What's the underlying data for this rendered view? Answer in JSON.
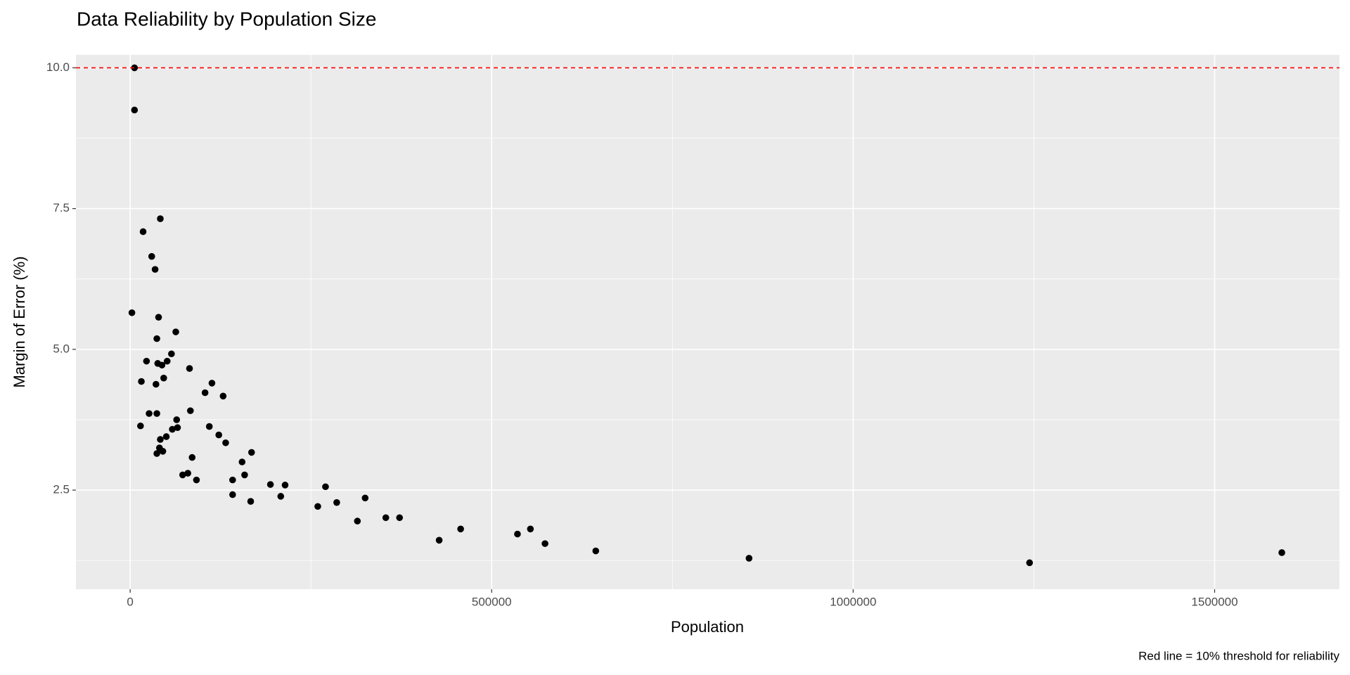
{
  "chart_data": {
    "type": "scatter",
    "title": "Data Reliability by Population Size",
    "x_label": "Population",
    "y_label": "Margin of Error (%)",
    "caption": "Red line = 10% threshold for reliability",
    "color": "#000000",
    "grid": true,
    "hline": {
      "value": 10,
      "color": "#ff0000"
    },
    "xlim": [
      -75000,
      1672619
    ],
    "ylim": [
      0.74,
      10.23
    ],
    "xticks": [
      0,
      500000,
      1000000,
      1500000
    ],
    "yticks": [
      {
        "value": 10,
        "label": "10.0"
      },
      7.5,
      {
        "value": 5,
        "label": "5.0"
      },
      2.5
    ],
    "x": [
      6000,
      6000,
      2400,
      17900,
      41700,
      29800,
      34500,
      39300,
      36900,
      63100,
      22600,
      15500,
      38100,
      44000,
      51200,
      57100,
      35700,
      46400,
      82100,
      26200,
      36900,
      14300,
      83300,
      103600,
      113100,
      128600,
      64300,
      58300,
      65500,
      109500,
      50000,
      41700,
      40500,
      36900,
      45200,
      122600,
      132100,
      85700,
      154800,
      167900,
      72600,
      79800,
      91700,
      141700,
      158300,
      141700,
      166700,
      194000,
      214300,
      208300,
      259500,
      270200,
      285700,
      325000,
      314300,
      353600,
      372600,
      427400,
      457100,
      535700,
      553600,
      573800,
      644000,
      856000,
      1244000,
      1592900
    ],
    "values": [
      10.0,
      9.25,
      5.65,
      7.09,
      7.32,
      6.65,
      6.42,
      5.57,
      5.19,
      5.31,
      4.79,
      4.43,
      4.75,
      4.72,
      4.79,
      4.92,
      4.38,
      4.49,
      4.66,
      3.86,
      3.86,
      3.64,
      3.91,
      4.23,
      4.4,
      4.17,
      3.75,
      3.58,
      3.61,
      3.63,
      3.45,
      3.4,
      3.25,
      3.15,
      3.19,
      3.48,
      3.34,
      3.08,
      3.0,
      3.17,
      2.77,
      2.8,
      2.68,
      2.68,
      2.77,
      2.42,
      2.3,
      2.6,
      2.59,
      2.39,
      2.21,
      2.56,
      2.28,
      2.36,
      1.95,
      2.01,
      2.01,
      1.61,
      1.81,
      1.72,
      1.81,
      1.55,
      1.42,
      1.29,
      1.21,
      1.39
    ]
  }
}
